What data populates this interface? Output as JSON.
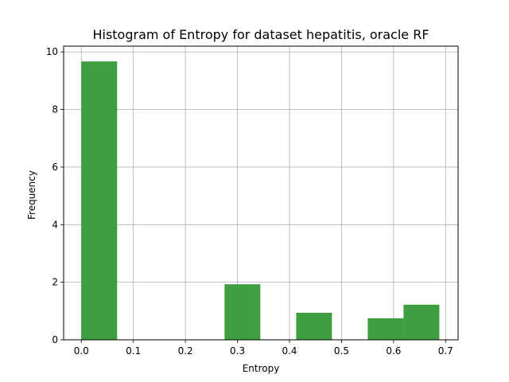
{
  "chart_data": {
    "type": "bar",
    "title": "Histogram of Entropy for dataset hepatitis, oracle RF",
    "xlabel": "Entropy",
    "ylabel": "Frequency",
    "xlim": [
      -0.034,
      0.724
    ],
    "ylim": [
      0,
      10.2
    ],
    "xticks": [
      0.0,
      0.1,
      0.2,
      0.3,
      0.4,
      0.5,
      0.6,
      0.7
    ],
    "xtick_labels": [
      "0.0",
      "0.1",
      "0.2",
      "0.3",
      "0.4",
      "0.5",
      "0.6",
      "0.7"
    ],
    "yticks": [
      0,
      2,
      4,
      6,
      8,
      10
    ],
    "ytick_labels": [
      "0",
      "2",
      "4",
      "6",
      "8",
      "10"
    ],
    "grid": true,
    "bar_color": "#3f9e3f",
    "bins": [
      {
        "start": 0.0,
        "end": 0.0688,
        "value": 9.67
      },
      {
        "start": 0.0688,
        "end": 0.1376,
        "value": 0
      },
      {
        "start": 0.1376,
        "end": 0.2064,
        "value": 0
      },
      {
        "start": 0.2064,
        "end": 0.2752,
        "value": 0
      },
      {
        "start": 0.2752,
        "end": 0.344,
        "value": 1.93
      },
      {
        "start": 0.344,
        "end": 0.4128,
        "value": 0
      },
      {
        "start": 0.4128,
        "end": 0.4816,
        "value": 0.94
      },
      {
        "start": 0.4816,
        "end": 0.5504,
        "value": 0
      },
      {
        "start": 0.5504,
        "end": 0.6192,
        "value": 0.75
      },
      {
        "start": 0.6192,
        "end": 0.688,
        "value": 1.22
      }
    ]
  }
}
